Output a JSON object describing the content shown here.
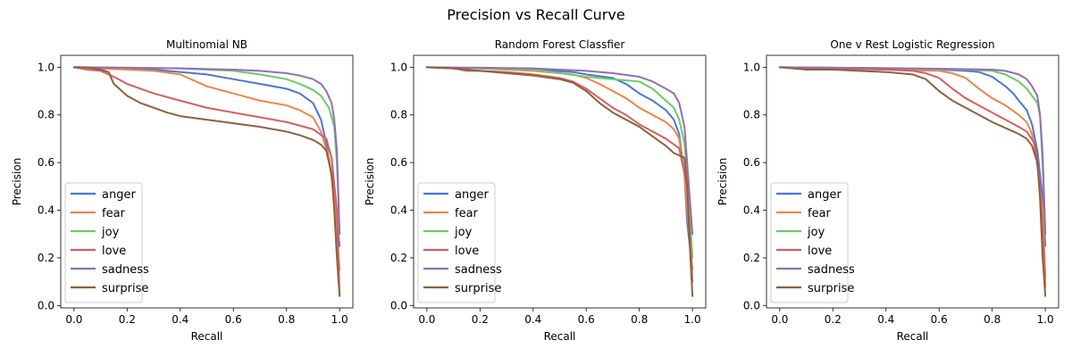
{
  "figure_title": "Precision vs Recall Curve",
  "colors": {
    "anger": "#4878d0",
    "fear": "#ee854a",
    "joy": "#6acc64",
    "love": "#d65f5f",
    "sadness": "#956cb4",
    "surprise": "#8c613c"
  },
  "chart_data": [
    {
      "type": "line",
      "title": "Multinomial NB",
      "xlabel": "Recall",
      "ylabel": "Precision",
      "xlim": [
        -0.05,
        1.05
      ],
      "ylim": [
        -0.01,
        1.05
      ],
      "xticks": [
        "0.0",
        "0.2",
        "0.4",
        "0.6",
        "0.8",
        "1.0"
      ],
      "yticks": [
        "0.0",
        "0.2",
        "0.4",
        "0.6",
        "0.8",
        "1.0"
      ],
      "grid": false,
      "legend": "lower-left",
      "series": [
        {
          "name": "anger",
          "x": [
            0.0,
            0.1,
            0.3,
            0.5,
            0.6,
            0.7,
            0.8,
            0.85,
            0.9,
            0.93,
            0.95,
            0.97,
            0.99,
            1.0
          ],
          "y": [
            1.0,
            0.995,
            0.99,
            0.97,
            0.95,
            0.93,
            0.91,
            0.89,
            0.85,
            0.78,
            0.68,
            0.55,
            0.35,
            0.25
          ]
        },
        {
          "name": "fear",
          "x": [
            0.0,
            0.1,
            0.2,
            0.3,
            0.4,
            0.5,
            0.6,
            0.7,
            0.8,
            0.85,
            0.9,
            0.93,
            0.96,
            0.98,
            1.0
          ],
          "y": [
            1.0,
            0.995,
            0.99,
            0.985,
            0.97,
            0.92,
            0.89,
            0.86,
            0.84,
            0.82,
            0.79,
            0.73,
            0.62,
            0.45,
            0.15
          ]
        },
        {
          "name": "joy",
          "x": [
            0.0,
            0.2,
            0.4,
            0.6,
            0.7,
            0.8,
            0.85,
            0.9,
            0.93,
            0.96,
            0.98,
            0.99,
            1.0
          ],
          "y": [
            1.0,
            0.998,
            0.995,
            0.985,
            0.97,
            0.95,
            0.93,
            0.905,
            0.88,
            0.83,
            0.75,
            0.6,
            0.3
          ]
        },
        {
          "name": "love",
          "x": [
            0.0,
            0.05,
            0.1,
            0.15,
            0.2,
            0.3,
            0.4,
            0.5,
            0.6,
            0.7,
            0.8,
            0.9,
            0.95,
            0.97,
            0.99,
            1.0
          ],
          "y": [
            1.0,
            0.99,
            0.985,
            0.96,
            0.93,
            0.89,
            0.86,
            0.83,
            0.81,
            0.79,
            0.77,
            0.74,
            0.7,
            0.62,
            0.4,
            0.04
          ]
        },
        {
          "name": "sadness",
          "x": [
            0.0,
            0.2,
            0.4,
            0.6,
            0.7,
            0.8,
            0.85,
            0.9,
            0.93,
            0.95,
            0.97,
            0.98,
            0.99,
            1.0
          ],
          "y": [
            1.0,
            0.998,
            0.995,
            0.99,
            0.985,
            0.975,
            0.965,
            0.95,
            0.93,
            0.9,
            0.85,
            0.78,
            0.65,
            0.3
          ]
        },
        {
          "name": "surprise",
          "x": [
            0.0,
            0.05,
            0.1,
            0.13,
            0.15,
            0.18,
            0.2,
            0.25,
            0.3,
            0.35,
            0.4,
            0.5,
            0.6,
            0.7,
            0.8,
            0.85,
            0.9,
            0.93,
            0.95,
            0.97,
            0.98,
            0.99,
            1.0
          ],
          "y": [
            1.0,
            1.0,
            0.99,
            0.98,
            0.93,
            0.9,
            0.88,
            0.85,
            0.83,
            0.81,
            0.795,
            0.78,
            0.765,
            0.75,
            0.73,
            0.715,
            0.695,
            0.675,
            0.65,
            0.55,
            0.4,
            0.2,
            0.04
          ]
        }
      ]
    },
    {
      "type": "line",
      "title": "Random Forest Classfier",
      "xlabel": "Recall",
      "ylabel": "Precision",
      "xlim": [
        -0.05,
        1.05
      ],
      "ylim": [
        -0.01,
        1.05
      ],
      "xticks": [
        "0.0",
        "0.2",
        "0.4",
        "0.6",
        "0.8",
        "1.0"
      ],
      "yticks": [
        "0.0",
        "0.2",
        "0.4",
        "0.6",
        "0.8",
        "1.0"
      ],
      "grid": false,
      "legend": "lower-left",
      "series": [
        {
          "name": "anger",
          "x": [
            0.0,
            0.2,
            0.4,
            0.55,
            0.6,
            0.7,
            0.75,
            0.8,
            0.85,
            0.9,
            0.93,
            0.95,
            0.97,
            0.98,
            1.0
          ],
          "y": [
            1.0,
            0.995,
            0.99,
            0.98,
            0.97,
            0.955,
            0.93,
            0.89,
            0.86,
            0.82,
            0.78,
            0.72,
            0.55,
            0.35,
            0.15
          ]
        },
        {
          "name": "fear",
          "x": [
            0.0,
            0.2,
            0.4,
            0.55,
            0.6,
            0.65,
            0.7,
            0.75,
            0.8,
            0.85,
            0.9,
            0.93,
            0.95,
            0.97,
            0.98,
            1.0
          ],
          "y": [
            1.0,
            0.995,
            0.985,
            0.97,
            0.955,
            0.93,
            0.9,
            0.87,
            0.83,
            0.8,
            0.77,
            0.74,
            0.7,
            0.55,
            0.4,
            0.15
          ]
        },
        {
          "name": "joy",
          "x": [
            0.0,
            0.2,
            0.4,
            0.5,
            0.6,
            0.7,
            0.8,
            0.85,
            0.9,
            0.93,
            0.95,
            0.97,
            0.98,
            1.0
          ],
          "y": [
            1.0,
            0.995,
            0.99,
            0.975,
            0.96,
            0.95,
            0.94,
            0.91,
            0.86,
            0.83,
            0.78,
            0.68,
            0.55,
            0.2
          ]
        },
        {
          "name": "love",
          "x": [
            0.0,
            0.1,
            0.15,
            0.2,
            0.3,
            0.4,
            0.5,
            0.55,
            0.6,
            0.65,
            0.7,
            0.75,
            0.8,
            0.85,
            0.9,
            0.95,
            0.98,
            1.0
          ],
          "y": [
            1.0,
            0.995,
            0.985,
            0.985,
            0.98,
            0.97,
            0.955,
            0.94,
            0.91,
            0.87,
            0.83,
            0.8,
            0.76,
            0.73,
            0.7,
            0.66,
            0.5,
            0.1
          ]
        },
        {
          "name": "sadness",
          "x": [
            0.0,
            0.2,
            0.4,
            0.6,
            0.7,
            0.8,
            0.85,
            0.9,
            0.93,
            0.95,
            0.97,
            0.98,
            0.99,
            1.0
          ],
          "y": [
            1.0,
            0.998,
            0.995,
            0.985,
            0.975,
            0.96,
            0.94,
            0.91,
            0.89,
            0.85,
            0.75,
            0.6,
            0.45,
            0.3
          ]
        },
        {
          "name": "surprise",
          "x": [
            0.0,
            0.1,
            0.2,
            0.3,
            0.4,
            0.5,
            0.55,
            0.6,
            0.65,
            0.7,
            0.75,
            0.8,
            0.85,
            0.9,
            0.93,
            0.95,
            0.97,
            0.98,
            0.99,
            1.0
          ],
          "y": [
            1.0,
            0.995,
            0.985,
            0.975,
            0.965,
            0.95,
            0.935,
            0.9,
            0.85,
            0.81,
            0.78,
            0.75,
            0.71,
            0.67,
            0.64,
            0.63,
            0.62,
            0.5,
            0.25,
            0.04
          ]
        }
      ]
    },
    {
      "type": "line",
      "title": "One v Rest Logistic Regression",
      "xlabel": "Recall",
      "ylabel": "Precision",
      "xlim": [
        -0.05,
        1.05
      ],
      "ylim": [
        -0.01,
        1.05
      ],
      "xticks": [
        "0.0",
        "0.2",
        "0.4",
        "0.6",
        "0.8",
        "1.0"
      ],
      "yticks": [
        "0.0",
        "0.2",
        "0.4",
        "0.6",
        "0.8",
        "1.0"
      ],
      "grid": false,
      "legend": "lower-left",
      "series": [
        {
          "name": "anger",
          "x": [
            0.0,
            0.2,
            0.4,
            0.6,
            0.7,
            0.75,
            0.8,
            0.85,
            0.88,
            0.9,
            0.93,
            0.95,
            0.97,
            0.99,
            1.0
          ],
          "y": [
            1.0,
            0.998,
            0.995,
            0.99,
            0.985,
            0.98,
            0.96,
            0.92,
            0.89,
            0.86,
            0.82,
            0.76,
            0.65,
            0.45,
            0.25
          ]
        },
        {
          "name": "fear",
          "x": [
            0.0,
            0.2,
            0.4,
            0.6,
            0.65,
            0.7,
            0.75,
            0.8,
            0.85,
            0.9,
            0.93,
            0.95,
            0.97,
            0.99,
            1.0
          ],
          "y": [
            1.0,
            0.995,
            0.99,
            0.985,
            0.975,
            0.955,
            0.91,
            0.87,
            0.84,
            0.8,
            0.77,
            0.72,
            0.6,
            0.4,
            0.12
          ]
        },
        {
          "name": "joy",
          "x": [
            0.0,
            0.2,
            0.4,
            0.6,
            0.7,
            0.8,
            0.85,
            0.9,
            0.93,
            0.95,
            0.97,
            0.98,
            0.99,
            1.0
          ],
          "y": [
            1.0,
            0.998,
            0.996,
            0.992,
            0.99,
            0.985,
            0.97,
            0.94,
            0.91,
            0.88,
            0.85,
            0.8,
            0.65,
            0.3
          ]
        },
        {
          "name": "love",
          "x": [
            0.0,
            0.2,
            0.4,
            0.5,
            0.55,
            0.6,
            0.65,
            0.7,
            0.75,
            0.8,
            0.85,
            0.9,
            0.93,
            0.96,
            0.98,
            1.0
          ],
          "y": [
            1.0,
            0.995,
            0.99,
            0.985,
            0.975,
            0.955,
            0.91,
            0.87,
            0.84,
            0.81,
            0.78,
            0.75,
            0.73,
            0.68,
            0.5,
            0.08
          ]
        },
        {
          "name": "sadness",
          "x": [
            0.0,
            0.2,
            0.4,
            0.6,
            0.7,
            0.8,
            0.85,
            0.9,
            0.93,
            0.95,
            0.97,
            0.98,
            0.99,
            1.0
          ],
          "y": [
            1.0,
            0.998,
            0.996,
            0.994,
            0.992,
            0.99,
            0.985,
            0.97,
            0.95,
            0.92,
            0.88,
            0.8,
            0.6,
            0.3
          ]
        },
        {
          "name": "surprise",
          "x": [
            0.0,
            0.05,
            0.1,
            0.2,
            0.3,
            0.4,
            0.5,
            0.55,
            0.6,
            0.65,
            0.7,
            0.75,
            0.8,
            0.85,
            0.9,
            0.93,
            0.95,
            0.97,
            0.98,
            0.99,
            1.0
          ],
          "y": [
            1.0,
            0.995,
            0.99,
            0.99,
            0.985,
            0.98,
            0.97,
            0.95,
            0.9,
            0.86,
            0.83,
            0.8,
            0.77,
            0.745,
            0.72,
            0.7,
            0.67,
            0.6,
            0.45,
            0.2,
            0.04
          ]
        }
      ]
    }
  ]
}
